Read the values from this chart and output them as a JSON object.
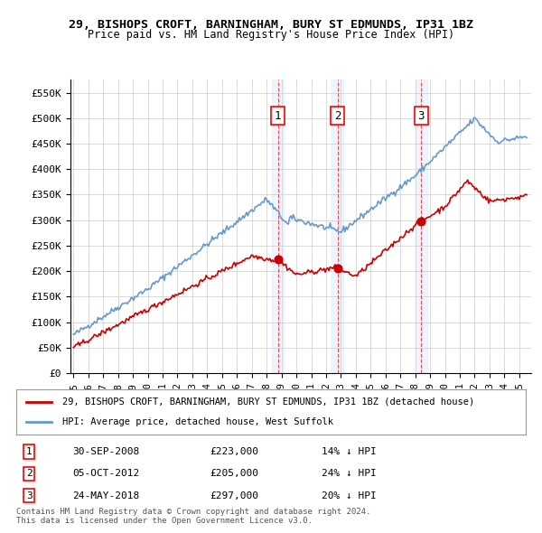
{
  "title1": "29, BISHOPS CROFT, BARNINGHAM, BURY ST EDMUNDS, IP31 1BZ",
  "title2": "Price paid vs. HM Land Registry's House Price Index (HPI)",
  "ylabel": "",
  "ylim": [
    0,
    575000
  ],
  "yticks": [
    0,
    50000,
    100000,
    150000,
    200000,
    250000,
    300000,
    350000,
    400000,
    450000,
    500000,
    550000
  ],
  "ytick_labels": [
    "£0",
    "£50K",
    "£100K",
    "£150K",
    "£200K",
    "£250K",
    "£300K",
    "£350K",
    "£400K",
    "£450K",
    "£500K",
    "£550K"
  ],
  "xlim_start": 1995.0,
  "xlim_end": 2025.5,
  "sale_dates": [
    2008.75,
    2012.77,
    2018.39
  ],
  "sale_prices": [
    223000,
    205000,
    297000
  ],
  "sale_labels": [
    "1",
    "2",
    "3"
  ],
  "sale_info": [
    {
      "num": "1",
      "date": "30-SEP-2008",
      "price": "£223,000",
      "pct": "14%",
      "dir": "↓",
      "vs": "HPI"
    },
    {
      "num": "2",
      "date": "05-OCT-2012",
      "price": "£205,000",
      "pct": "24%",
      "dir": "↓",
      "vs": "HPI"
    },
    {
      "num": "3",
      "date": "24-MAY-2018",
      "price": "£297,000",
      "pct": "20%",
      "dir": "↓",
      "vs": "HPI"
    }
  ],
  "legend_line1": "29, BISHOPS CROFT, BARNINGHAM, BURY ST EDMUNDS, IP31 1BZ (detached house)",
  "legend_line2": "HPI: Average price, detached house, West Suffolk",
  "footer1": "Contains HM Land Registry data © Crown copyright and database right 2024.",
  "footer2": "This data is licensed under the Open Government Licence v3.0.",
  "red_color": "#cc0000",
  "blue_color": "#6699cc",
  "bg_color": "#ffffff",
  "grid_color": "#cccccc",
  "highlight_color": "#ddeeff"
}
